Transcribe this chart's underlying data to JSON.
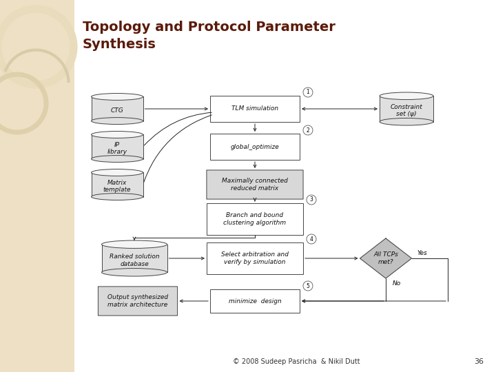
{
  "title_line1": "Topology and Protocol Parameter",
  "title_line2": "Synthesis",
  "title_color": "#5B1A0A",
  "title_fontsize": 14,
  "bg_color": "#FFFFFF",
  "slide_bg": "#EDE0C4",
  "footer_text": "© 2008 Sudeep Pasricha  & Nikil Dutt",
  "footer_num": "36",
  "shape_fill": "#E0E0E0",
  "shape_edge": "#444444",
  "box_fill": "#FFFFFF",
  "diamond_fill": "#C0C0C0",
  "rounded_fill": "#D8D8D8",
  "font_color": "#111111",
  "fontsize": 6.5
}
